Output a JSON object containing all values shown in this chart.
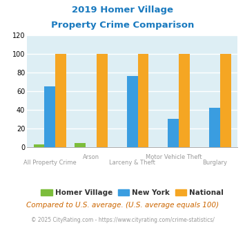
{
  "title_line1": "2019 Homer Village",
  "title_line2": "Property Crime Comparison",
  "title_color": "#1a7abf",
  "categories": [
    "All Property Crime",
    "Arson",
    "Larceny & Theft",
    "Motor Vehicle Theft",
    "Burglary"
  ],
  "series": {
    "Homer Village": [
      3,
      4,
      0,
      0,
      0
    ],
    "New York": [
      65,
      0,
      76,
      30,
      42
    ],
    "National": [
      100,
      100,
      100,
      100,
      100
    ]
  },
  "colors": {
    "Homer Village": "#7cbd3b",
    "New York": "#3a9de0",
    "National": "#f5a623"
  },
  "ylim": [
    0,
    120
  ],
  "yticks": [
    0,
    20,
    40,
    60,
    80,
    100,
    120
  ],
  "background_color": "#ddeef4",
  "grid_color": "#ffffff",
  "footnote1": "Compared to U.S. average. (U.S. average equals 100)",
  "footnote2": "© 2025 CityRating.com - https://www.cityrating.com/crime-statistics/",
  "footnote1_color": "#cc6600",
  "footnote2_color": "#999999",
  "footnote1_fontsize": 7.5,
  "footnote2_fontsize": 5.5
}
